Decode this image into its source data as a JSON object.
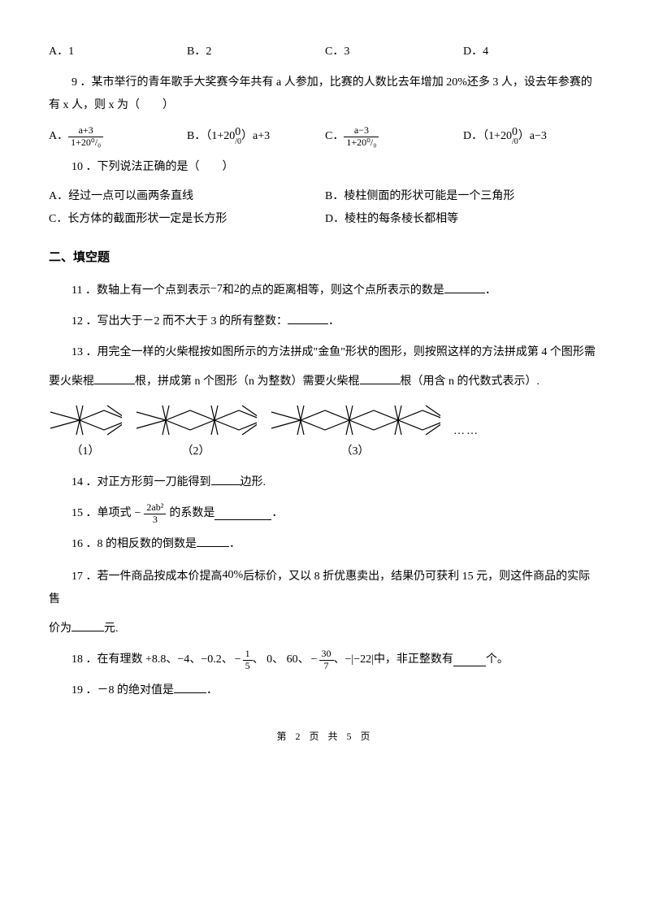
{
  "q8_options": {
    "a": "A．1",
    "b": "B．2",
    "c": "C．3",
    "d": "D．4"
  },
  "q9": {
    "text": "9 ．某市举行的青年歌手大奖赛今年共有 a 人参加，比赛的人数比去年增加 20%还多 3 人，设去年参赛的有 x 人，则 x 为（　　）",
    "A_label": "A．",
    "A_num": "a+3",
    "A_den": "1+20⁰/₀",
    "B_label": "B．（1+20",
    "B_tail": "）a+3",
    "C_label": "C．",
    "C_num": "a−3",
    "C_den": "1+20⁰/₀",
    "D_label": "D．（1+20",
    "D_tail": "）a−3",
    "pct_top": "0",
    "pct_bot": "/0"
  },
  "q10": {
    "text": "10 ．下列说法正确的是（　　）",
    "a": "A．经过一点可以画两条直线",
    "b": "B．棱柱侧面的形状可能是一个三角形",
    "c": "C．长方体的截面形状一定是长方形",
    "d": "D．棱柱的每条棱长都相等"
  },
  "section2": "二、填空题",
  "q11": {
    "pre": "11 ．数轴上有一个点到表示",
    "mid1": "和",
    "mid2": "的点的距离相等，则这个点所表示的数是",
    "tail": "．",
    "n1": "−7",
    "n2": "2"
  },
  "q12": {
    "pre": "12 ．写出大于－2 而不大于 3 的所有整数：",
    "tail": "．"
  },
  "q13": {
    "line1": "13 ．用完全一样的火柴棍按如图所示的方法拼成\"金鱼\"形状的图形，则按照这样的方法拼成第 4 个图形需",
    "line2_pre": "要火柴棍",
    "line2_mid": "根，拼成第 n 个图形（n 为整数）需要火柴棍",
    "line2_tail": "根（用含 n 的代数式表示）.",
    "cap1": "（1）",
    "cap2": "（2）",
    "cap3": "（3）",
    "dots": "……"
  },
  "q14": {
    "pre": "14 ．对正方形剪一刀能得到",
    "tail": "边形."
  },
  "q15": {
    "pre": "15 ．单项式",
    "mid": "的系数是",
    "tail": "．",
    "neg": "−",
    "num": "2ab²",
    "den": "3"
  },
  "q16": {
    "pre": "16 ．8 的相反数的倒数是",
    "tail": "．"
  },
  "q17": {
    "pre": "17 ．若一件商品按成本价提高",
    "mid": "后标价，又以 8 折优惠卖出，结果仍可获利 15 元，则这件商品的实际售",
    "line2_pre": "价为",
    "line2_tail": "元.",
    "pct": "40%"
  },
  "q18": {
    "pre": "18 ．在有理数 +8.8、",
    "s1": "−4",
    "sep": "、",
    "s2": "−0.2",
    "s3_neg": "−",
    "s3_num": "1",
    "s3_den": "5",
    "mid1": "、 0、 60、",
    "s4_neg": "−",
    "s4_num": "30",
    "s4_den": "7",
    "mid2": "、",
    "s5": "−|−22|",
    "tail_pre": "中，非正整数有",
    "tail": "个。"
  },
  "q19": {
    "pre": "19 ．－8 的绝对值是",
    "tail": "．"
  },
  "footer": "第 2 页 共 5 页",
  "fish_svg": {
    "stroke": "#000000",
    "stroke_width": 1.2
  }
}
